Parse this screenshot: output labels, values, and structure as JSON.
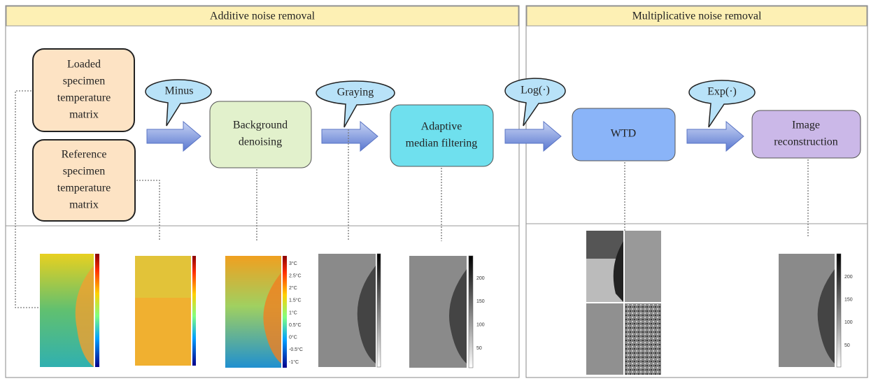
{
  "panels": [
    {
      "title": "Additive noise removal"
    },
    {
      "title": "Multiplicative noise removal"
    }
  ],
  "nodes": [
    {
      "lines": [
        "Loaded",
        "specimen",
        "temperature",
        "matrix"
      ]
    },
    {
      "lines": [
        "Reference",
        "specimen",
        "temperature",
        "matrix"
      ]
    },
    {
      "lines": [
        "Background",
        "denoising"
      ]
    },
    {
      "lines": [
        "Adaptive",
        "median filtering"
      ]
    },
    {
      "lines": [
        "WTD"
      ]
    },
    {
      "lines": [
        "Image",
        "reconstruction"
      ]
    }
  ],
  "operations": [
    "Minus",
    "Graying",
    "Log(·)",
    "Exp(·)"
  ],
  "colorbars": [
    {
      "labels": [
        "3°C",
        "2.5°C",
        "2°C",
        "1.5°C",
        "1°C",
        "0.5°C",
        "0°C",
        "-0.5°C",
        "-1°C"
      ]
    },
    {
      "labels": [
        "200",
        "150",
        "100",
        "50"
      ]
    },
    {
      "labels": [
        "200",
        "150",
        "100",
        "50"
      ]
    }
  ]
}
